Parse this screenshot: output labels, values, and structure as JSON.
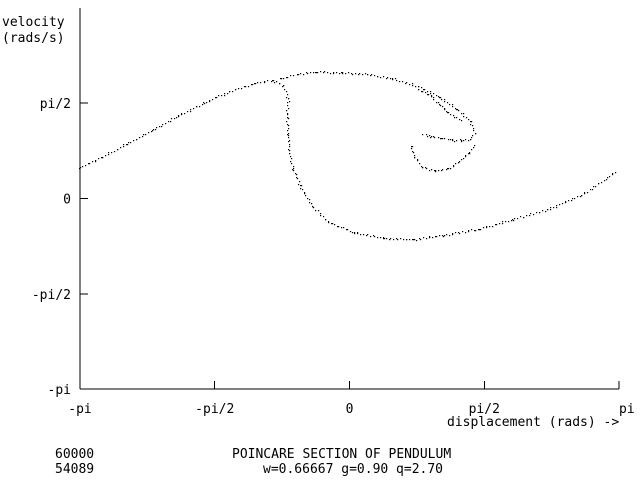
{
  "chart_data": {
    "type": "scatter",
    "title": "POINCARE SECTION OF PENDULUM",
    "subtitle": "w=0.66667 g=0.90 q=2.70",
    "ylabel_line1": "velocity",
    "ylabel_line2": "(rads/s)",
    "xlabel": "displacement (rads) ->",
    "xlim": [
      -3.14159,
      3.14159
    ],
    "ylim": [
      -3.14159,
      3.14159
    ],
    "x_ticks": [
      {
        "value": -3.14159,
        "label": "-pi"
      },
      {
        "value": -1.5708,
        "label": "-pi/2"
      },
      {
        "value": 0,
        "label": "0"
      },
      {
        "value": 1.5708,
        "label": "pi/2"
      },
      {
        "value": 3.14159,
        "label": "pi"
      }
    ],
    "y_ticks": [
      {
        "value": -3.14159,
        "label": "-pi"
      },
      {
        "value": -1.5708,
        "label": "-pi/2"
      },
      {
        "value": 0,
        "label": "0"
      },
      {
        "value": 1.5708,
        "label": "pi/2"
      }
    ],
    "grid": false,
    "point_color": "#000000",
    "series": [
      {
        "values_xy": [
          [
            -3.14,
            0.52
          ],
          [
            -2.9,
            0.68
          ],
          [
            -2.6,
            0.9
          ],
          [
            -2.3,
            1.13
          ],
          [
            -2.0,
            1.37
          ],
          [
            -1.7,
            1.58
          ],
          [
            -1.4,
            1.77
          ],
          [
            -1.1,
            1.91
          ],
          [
            -0.9,
            1.95
          ],
          [
            -0.78,
            1.88
          ],
          [
            -0.72,
            1.65
          ],
          [
            -0.73,
            1.35
          ],
          [
            -0.72,
            1.05
          ],
          [
            -0.7,
            0.75
          ],
          [
            -0.66,
            0.5
          ],
          [
            -0.58,
            0.22
          ],
          [
            -0.44,
            -0.12
          ],
          [
            -0.25,
            -0.38
          ],
          [
            0.05,
            -0.56
          ],
          [
            0.4,
            -0.65
          ],
          [
            0.75,
            -0.67
          ],
          [
            1.1,
            -0.6
          ],
          [
            1.5,
            -0.5
          ],
          [
            1.9,
            -0.34
          ],
          [
            2.3,
            -0.18
          ],
          [
            2.7,
            0.06
          ],
          [
            3.1,
            0.44
          ],
          [
            -0.8,
            1.98
          ],
          [
            -0.6,
            2.06
          ],
          [
            -0.4,
            2.09
          ],
          [
            -0.1,
            2.08
          ],
          [
            0.2,
            2.05
          ],
          [
            0.5,
            1.98
          ],
          [
            0.8,
            1.85
          ],
          [
            1.05,
            1.68
          ],
          [
            1.25,
            1.48
          ],
          [
            1.4,
            1.28
          ],
          [
            1.46,
            1.08
          ],
          [
            1.4,
            0.98
          ],
          [
            1.3,
            0.96
          ],
          [
            1.2,
            0.97
          ],
          [
            1.08,
            1.0
          ],
          [
            0.95,
            1.03
          ],
          [
            0.85,
            1.06
          ],
          [
            0.72,
            0.87
          ],
          [
            0.75,
            0.68
          ],
          [
            0.85,
            0.52
          ],
          [
            1.0,
            0.46
          ],
          [
            1.15,
            0.5
          ],
          [
            1.28,
            0.62
          ],
          [
            1.38,
            0.75
          ],
          [
            1.45,
            0.88
          ],
          [
            0.8,
            1.8
          ],
          [
            0.95,
            1.7
          ],
          [
            1.05,
            1.55
          ],
          [
            1.15,
            1.42
          ],
          [
            1.3,
            1.3
          ]
        ]
      }
    ]
  },
  "footer": {
    "iterations_total": "60000",
    "iterations_plotted": "54089"
  }
}
